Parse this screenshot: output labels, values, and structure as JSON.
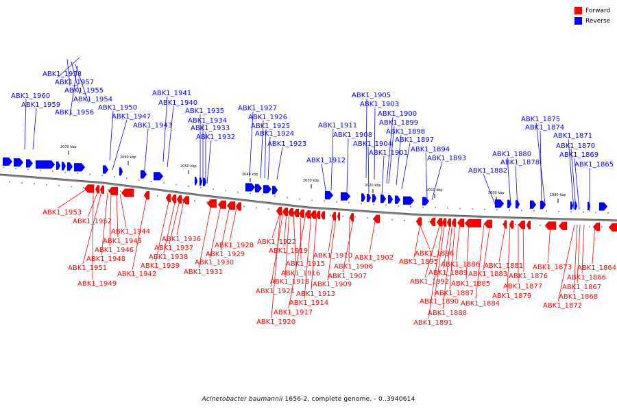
{
  "legend": {
    "forward_label": "Forward",
    "reverse_label": "Reverse",
    "forward_color": "#ff0000",
    "reverse_color": "#0000ff"
  },
  "footer": {
    "species": "Acinetobacter baumannii",
    "rest": " 1656-2, complete genome. - 0..3940614"
  },
  "ruler": {
    "ticks": [
      "2070 kbp",
      "2060 kbp",
      "2050 kbp",
      "2040 kbp",
      "2030 kbp",
      "2020 kbp",
      "2010 kbp",
      "2000 kbp",
      "1990 kbp"
    ]
  },
  "reverse_genes": [
    "ABK1_1958",
    "ABK1_1957",
    "ABK1_1955",
    "ABK1_1954",
    "ABK1_1960",
    "ABK1_1959",
    "ABK1_1956",
    "ABK1_1950",
    "ABK1_1947",
    "ABK1_1943",
    "ABK1_1941",
    "ABK1_1940",
    "ABK1_1935",
    "ABK1_1934",
    "ABK1_1933",
    "ABK1_1932",
    "ABK1_1927",
    "ABK1_1926",
    "ABK1_1925",
    "ABK1_1924",
    "ABK1_1923",
    "ABK1_1905",
    "ABK1_1903",
    "ABK1_1900",
    "ABK1_1899",
    "ABK1_1898",
    "ABK1_1911",
    "ABK1_1908",
    "ABK1_1904",
    "ABK1_1897",
    "ABK1_1901",
    "ABK1_1894",
    "ABK1_1912",
    "ABK1_1893",
    "ABK1_1875",
    "ABK1_1874",
    "ABK1_1871",
    "ABK1_1870",
    "ABK1_1880",
    "ABK1_1878",
    "ABK1_1869",
    "ABK1_1882",
    "ABK1_1865"
  ],
  "forward_genes": [
    "ABK1_1953",
    "ABK1_1952",
    "ABK1_1944",
    "ABK1_1945",
    "ABK1_1946",
    "ABK1_1948",
    "ABK1_1951",
    "ABK1_1942",
    "ABK1_1949",
    "ABK1_1936",
    "ABK1_1937",
    "ABK1_1938",
    "ABK1_1939",
    "ABK1_1928",
    "ABK1_1929",
    "ABK1_1930",
    "ABK1_1931",
    "ABK1_1922",
    "ABK1_1919",
    "ABK1_1915",
    "ABK1_1916",
    "ABK1_1918",
    "ABK1_1921",
    "ABK1_1913",
    "ABK1_1914",
    "ABK1_1917",
    "ABK1_1920",
    "ABK1_1910",
    "ABK1_1906",
    "ABK1_1907",
    "ABK1_1909",
    "ABK1_1902",
    "ABK1_1896",
    "ABK1_1895",
    "ABK1_1889",
    "ABK1_1892",
    "ABK1_1886",
    "ABK1_1883",
    "ABK1_1885",
    "ABK1_1887",
    "ABK1_1890",
    "ABK1_1884",
    "ABK1_1888",
    "ABK1_1891",
    "ABK1_1881",
    "ABK1_1876",
    "ABK1_1877",
    "ABK1_1879",
    "ABK1_1873",
    "ABK1_1864",
    "ABK1_1866",
    "ABK1_1867",
    "ABK1_1868",
    "ABK1_1872"
  ]
}
